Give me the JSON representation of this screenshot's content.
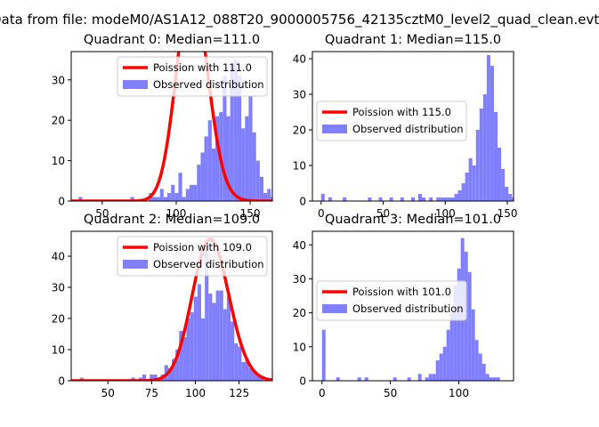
{
  "chart_data": {
    "type": "bar",
    "suptitle": "Data from file: modeM0/AS1A12_088T20_9000005756_42135cztM0_level2_quad_clean.evt",
    "colors": {
      "histogram": "#8080ff",
      "poisson": "#ff0000",
      "axes": "#000000",
      "legend_border": "#cccccc"
    },
    "legend_placement": "upper-right / center-left",
    "panels": [
      {
        "title": "Quadrant 0: Median=111.0",
        "median": 111.0,
        "xlim": [
          29,
          165
        ],
        "ylim": [
          0,
          37
        ],
        "xticks": [
          50,
          100,
          150
        ],
        "yticks": [
          0,
          10,
          20,
          30
        ],
        "legend": {
          "line_label": "Poission with 111.0",
          "hist_label": "Observed distribution",
          "placement": "upper-right"
        },
        "histogram": {
          "bin_start": 34,
          "bin_width": 2.5,
          "counts": [
            1,
            0,
            0,
            0,
            0,
            0,
            0,
            0,
            0,
            0,
            0,
            0,
            0,
            0,
            1,
            0,
            0,
            0,
            0,
            2,
            1,
            1,
            3,
            1,
            2,
            4,
            2,
            7,
            1,
            3,
            4,
            4,
            9,
            12,
            16,
            20,
            13,
            21,
            22,
            31,
            21,
            34,
            35,
            31,
            18,
            21,
            26,
            17,
            10,
            6,
            2,
            3,
            1,
            1,
            0,
            0,
            0,
            0,
            0,
            1
          ]
        },
        "poisson_mean": 111.0,
        "poisson_scale": 1400
      },
      {
        "title": "Quadrant 1: Median=115.0",
        "median": 115.0,
        "xlim": [
          -7,
          155
        ],
        "ylim": [
          0,
          42
        ],
        "xticks": [
          0,
          50,
          100,
          150
        ],
        "yticks": [
          0,
          10,
          20,
          30,
          40
        ],
        "legend": {
          "line_label": "Poission with 115.0",
          "hist_label": "Observed distribution",
          "placement": "center-left"
        },
        "histogram": {
          "bin_start": 0,
          "bin_width": 2.9,
          "counts": [
            2,
            0,
            1,
            0,
            0,
            0,
            1,
            0,
            0,
            0,
            0,
            0,
            0,
            1,
            0,
            0,
            1,
            0,
            0,
            1,
            0,
            0,
            1,
            0,
            0,
            1,
            0,
            2,
            1,
            0,
            1,
            0,
            1,
            1,
            1,
            1,
            1,
            2,
            3,
            5,
            8,
            12,
            10,
            20,
            26,
            30,
            41,
            38,
            25,
            15,
            9,
            4,
            2,
            1,
            0
          ]
        },
        "poisson_mean": 115.0,
        "poisson_scale": 1450
      },
      {
        "title": "Quadrant 2: Median=109.0",
        "median": 109.0,
        "xlim": [
          29,
          144
        ],
        "ylim": [
          0,
          48
        ],
        "xticks": [
          50,
          75,
          100,
          125
        ],
        "yticks": [
          0,
          10,
          20,
          30,
          40
        ],
        "legend": {
          "line_label": "Poission with 109.0",
          "hist_label": "Observed distribution",
          "placement": "upper-right"
        },
        "histogram": {
          "bin_start": 34,
          "bin_width": 2.1,
          "counts": [
            1,
            0,
            0,
            0,
            0,
            0,
            0,
            0,
            0,
            0,
            0,
            0,
            0,
            0,
            1,
            0,
            1,
            2,
            0,
            2,
            2,
            0,
            2,
            5,
            4,
            7,
            10,
            16,
            14,
            20,
            22,
            27,
            31,
            20,
            44,
            28,
            25,
            29,
            29,
            23,
            27,
            19,
            12,
            11,
            6,
            7,
            4,
            3,
            2,
            1
          ]
        },
        "poisson_mean": 109.0,
        "poisson_scale": 1190
      },
      {
        "title": "Quadrant 3: Median=101.0",
        "median": 101.0,
        "xlim": [
          -7,
          140
        ],
        "ylim": [
          0,
          44
        ],
        "xticks": [
          0,
          50,
          100
        ],
        "yticks": [
          0,
          10,
          20,
          30,
          40
        ],
        "legend": {
          "line_label": "Poission with 101.0",
          "hist_label": "Observed distribution",
          "placement": "center-left"
        },
        "histogram": {
          "bin_start": 0,
          "bin_width": 2.6,
          "counts": [
            15,
            0,
            0,
            0,
            1,
            0,
            0,
            0,
            0,
            0,
            1,
            0,
            1,
            0,
            0,
            0,
            0,
            0,
            0,
            0,
            1,
            0,
            0,
            0,
            1,
            0,
            0,
            2,
            0,
            1,
            2,
            2,
            6,
            8,
            10,
            15,
            20,
            28,
            33,
            42,
            38,
            32,
            21,
            12,
            8,
            5,
            2,
            1,
            1,
            1
          ]
        },
        "poisson_mean": 101.0,
        "poisson_scale": 1080
      }
    ]
  }
}
